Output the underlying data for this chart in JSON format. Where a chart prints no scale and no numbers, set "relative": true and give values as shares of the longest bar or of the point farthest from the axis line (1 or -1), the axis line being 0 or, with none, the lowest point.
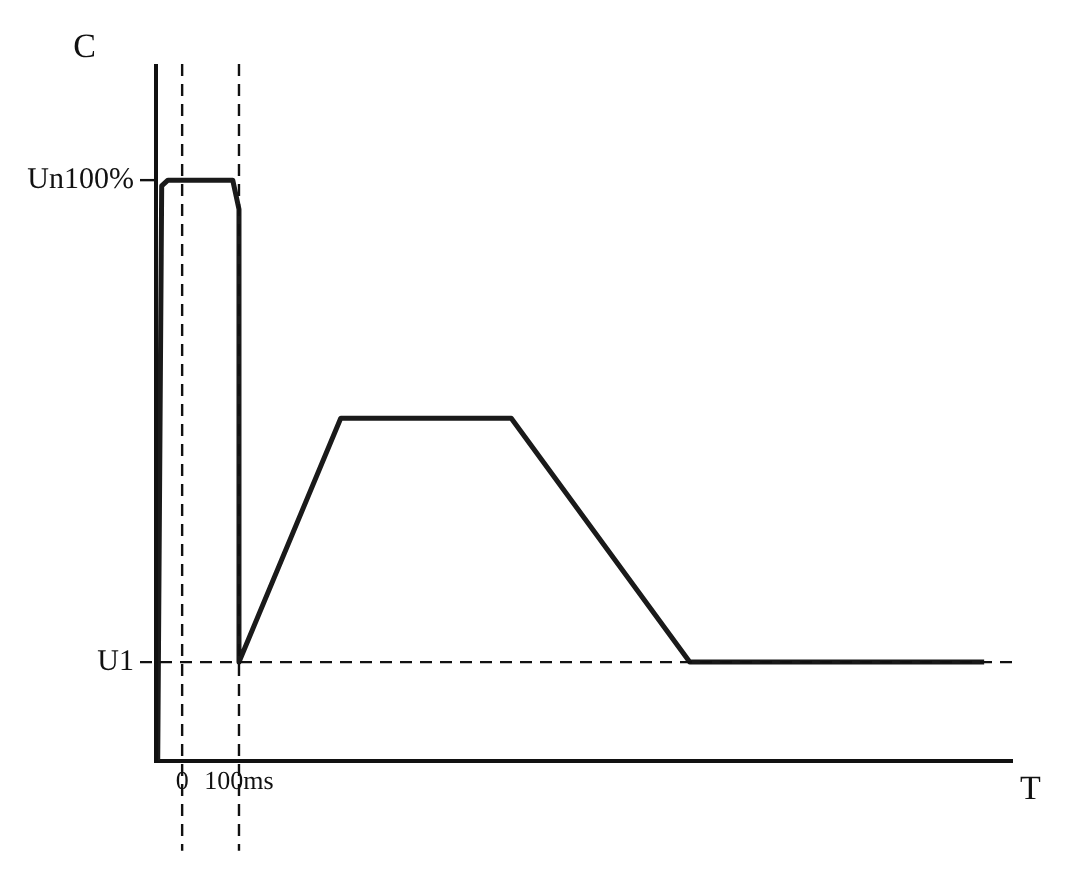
{
  "chart_data": {
    "type": "line",
    "xlabel": "T",
    "ylabel": "C",
    "series": [
      {
        "color": "#1a1a1a",
        "x": [
          -43,
          -36,
          -25,
          89,
          100,
          100,
          279,
          579,
          893,
          1411
        ],
        "values": [
          0,
          0.99,
          1,
          1,
          0.95,
          0.17,
          0.59,
          0.59,
          0.17,
          0.17
        ]
      }
    ],
    "xlim": [
      -46,
      1460
    ],
    "relative": true,
    "xticks": [
      {
        "value": 0,
        "label": "0"
      },
      {
        "value": 100,
        "label": "100ms"
      }
    ],
    "ref_lines": [
      {
        "axis": "x",
        "value": 0,
        "line_style": "dashed"
      },
      {
        "axis": "x",
        "value": 100,
        "line_style": "dashed"
      },
      {
        "axis": "y",
        "value": 1,
        "label": "Un100%",
        "line_style": "solid"
      },
      {
        "axis": "y",
        "value": 0.17,
        "label": "U1",
        "line_style": "dashed"
      }
    ],
    "grid": false,
    "marker": "none",
    "line_style": "solid"
  }
}
